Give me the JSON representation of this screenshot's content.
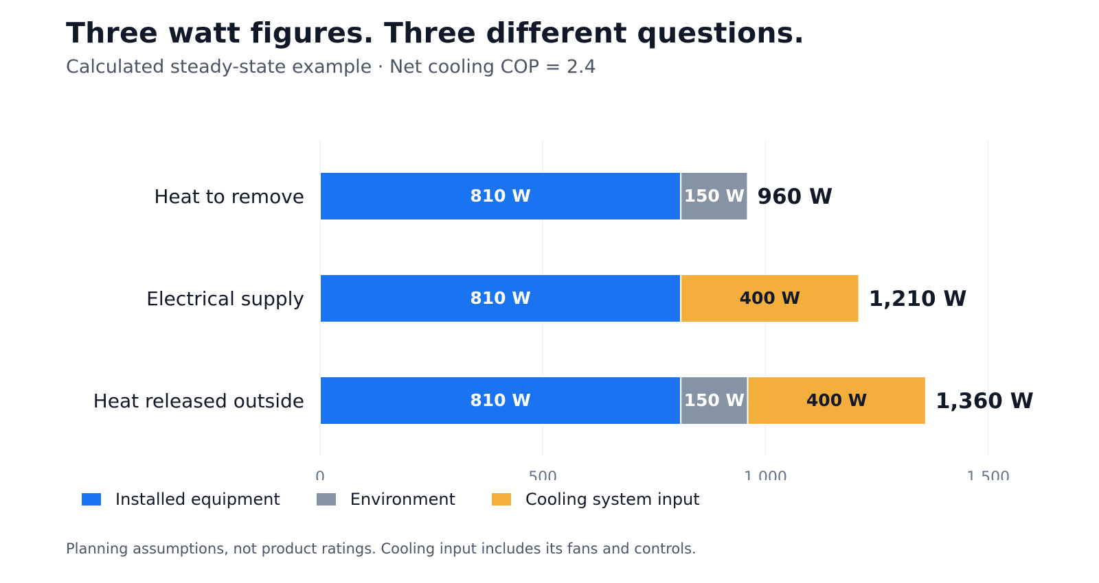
{
  "chart_data": {
    "type": "bar",
    "orientation": "horizontal",
    "stacked": true,
    "title": "Three watt figures. Three different questions.",
    "subtitle": "Calculated steady-state example · Net cooling COP = 2.4",
    "categories": [
      "Heat to remove",
      "Electrical supply",
      "Heat released outside"
    ],
    "series": [
      {
        "name": "Installed equipment",
        "color": "#1a73f0",
        "label_color": "#ffffff",
        "values": [
          810,
          810,
          810
        ],
        "labels": [
          "810 W",
          "810 W",
          "810 W"
        ]
      },
      {
        "name": "Environment",
        "color": "#8593a5",
        "label_color": "#ffffff",
        "values": [
          150,
          0,
          150
        ],
        "labels": [
          "150 W",
          "",
          "150 W"
        ]
      },
      {
        "name": "Cooling system input",
        "color": "#f3ae3e",
        "label_color": "#111827",
        "values": [
          0,
          400,
          400
        ],
        "labels": [
          "",
          "400 W",
          "400 W"
        ]
      }
    ],
    "totals": [
      960,
      1210,
      1360
    ],
    "total_labels": [
      "960 W",
      "1,210 W",
      "1,360 W"
    ],
    "xlim": [
      0,
      1620
    ],
    "xticks": [
      0,
      500,
      1000,
      1500
    ],
    "xtick_labels": [
      "0",
      "500",
      "1,000",
      "1,500"
    ],
    "grid": "vertical",
    "legend": "bottom-left",
    "footnote": "Planning assumptions, not product ratings. Cooling input includes its fans and controls."
  }
}
